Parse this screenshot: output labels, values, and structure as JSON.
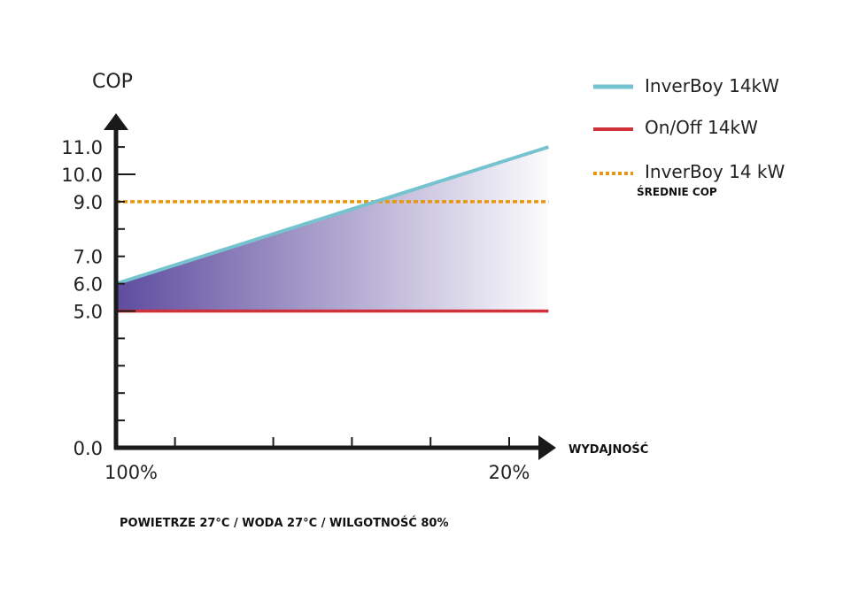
{
  "chart_data": {
    "type": "line",
    "ylabel": "COP",
    "xlabel": "WYDAJNOŚĆ",
    "footnote": "POWIETRZE 27°C / WODA 27°C / WILGOTNOŚĆ 80%",
    "ylim": [
      0,
      11.5
    ],
    "yticks": [
      0,
      1,
      2,
      3,
      4,
      5,
      6,
      7,
      8,
      9,
      10,
      11
    ],
    "ytick_labels": [
      {
        "value": 11,
        "label": "11.0"
      },
      {
        "value": 10,
        "label": "10.0"
      },
      {
        "value": 9,
        "label": "9.0"
      },
      {
        "value": 7,
        "label": "7.0"
      },
      {
        "value": 6,
        "label": "6.0"
      },
      {
        "value": 5,
        "label": "5.0"
      },
      {
        "value": 0,
        "label": "0.0"
      }
    ],
    "xlim": [
      100,
      12
    ],
    "xticks": [
      88,
      68,
      52,
      36,
      20
    ],
    "xtick_labels": [
      {
        "value": 100,
        "label": "100%"
      },
      {
        "value": 20,
        "label": "20%"
      }
    ],
    "series": [
      {
        "name": "InverBoy 14kW",
        "color": "#76c3d0",
        "style": "solid",
        "x": [
          100,
          12
        ],
        "y": [
          6.0,
          11.0
        ]
      },
      {
        "name": "On/Off 14kW",
        "color": "#d0313a",
        "style": "solid",
        "x": [
          100,
          12
        ],
        "y": [
          5.0,
          5.0
        ]
      },
      {
        "name": "InverBoy 14 kW",
        "subtitle": "ŚREDNIE COP",
        "color": "#e8960f",
        "style": "dotted",
        "x": [
          100,
          12
        ],
        "y": [
          9.0,
          9.0
        ]
      }
    ],
    "fill_between": {
      "series": [
        "InverBoy 14kW",
        "On/Off 14kW"
      ],
      "color": "#5e4c9f"
    },
    "legend_position": "top-right",
    "grid": false
  }
}
